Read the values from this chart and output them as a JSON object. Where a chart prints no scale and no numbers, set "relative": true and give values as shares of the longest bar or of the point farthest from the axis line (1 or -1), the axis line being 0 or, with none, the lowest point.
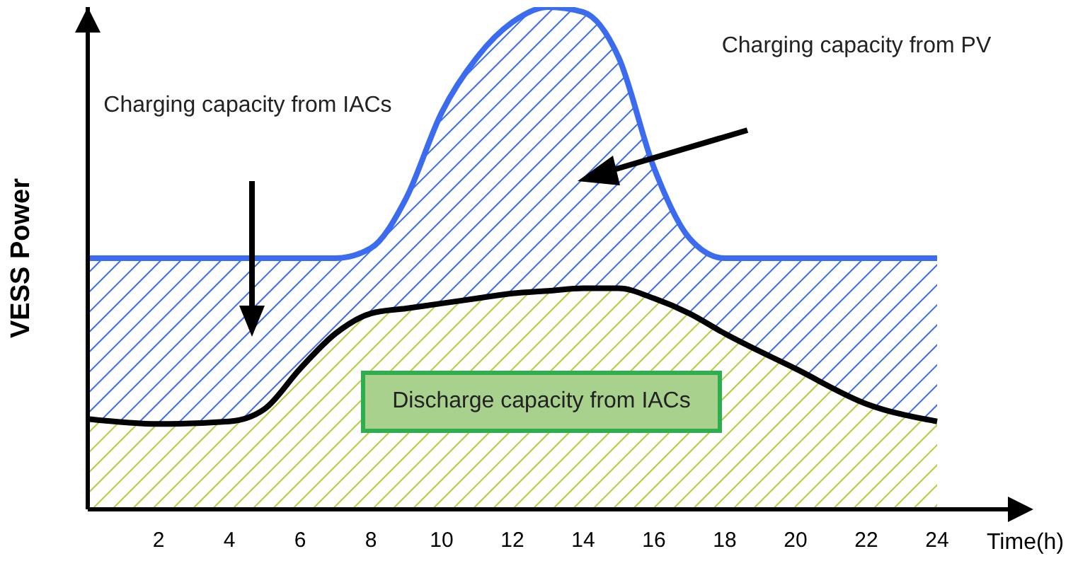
{
  "chart_data": {
    "type": "area",
    "relative": true,
    "xlabel": "Time(h)",
    "ylabel": "VESS Power",
    "x": [
      0,
      2,
      4,
      5,
      6,
      7,
      8,
      9,
      10,
      11,
      12,
      13,
      14,
      15,
      16,
      17,
      18,
      20,
      22,
      24
    ],
    "xlim": [
      0,
      26
    ],
    "xticks": [
      2,
      4,
      6,
      8,
      10,
      12,
      14,
      16,
      18,
      20,
      22,
      24
    ],
    "series": [
      {
        "color": "#3b6cf0",
        "values": [
          0.5,
          0.5,
          0.5,
          0.5,
          0.5,
          0.5,
          0.52,
          0.62,
          0.79,
          0.9,
          0.97,
          1,
          0.99,
          0.9,
          0.68,
          0.54,
          0.5,
          0.5,
          0.5,
          0.5
        ]
      },
      {
        "color": "#b5cc3a",
        "values": [
          0.18,
          0.17,
          0.175,
          0.2,
          0.28,
          0.35,
          0.39,
          0.4,
          0.41,
          0.42,
          0.43,
          0.435,
          0.44,
          0.44,
          0.42,
          0.39,
          0.35,
          0.28,
          0.21,
          0.175
        ]
      }
    ],
    "annotations": [
      "Charging capacity from IACs",
      "Charging capacity from PV",
      "Discharge capacity from IACs"
    ],
    "grid": false,
    "legend": false
  }
}
